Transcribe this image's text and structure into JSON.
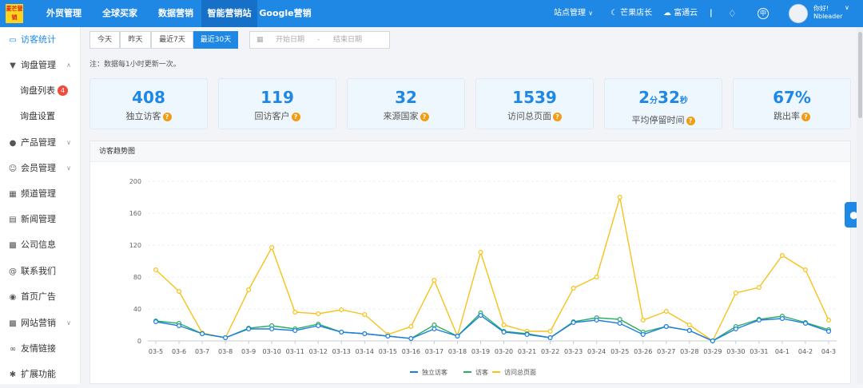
{
  "topbar": {
    "logo": "麦芒营销",
    "nav": [
      "外贸管理",
      "全球买家",
      "数据营销",
      "智能营销站",
      "Google营销"
    ],
    "active_nav": 3,
    "site_manage": "站点管理",
    "mango": "芒果店长",
    "cloud": "富通云",
    "separator": "|",
    "lang": "中",
    "greeting": "你好!",
    "user": "Nbleader"
  },
  "sidebar": {
    "items": [
      {
        "label": "访客统计",
        "icon": "monitor-icon",
        "active": true
      },
      {
        "label": "询盘管理",
        "icon": "cart-icon",
        "expand": "up"
      },
      {
        "label": "询盘列表",
        "sub": true,
        "badge": "4"
      },
      {
        "label": "询盘设置",
        "sub": true
      },
      {
        "label": "产品管理",
        "icon": "product-icon",
        "expand": "down"
      },
      {
        "label": "会员管理",
        "icon": "member-icon",
        "expand": "down"
      },
      {
        "label": "频道管理",
        "icon": "grid-icon"
      },
      {
        "label": "新闻管理",
        "icon": "news-icon"
      },
      {
        "label": "公司信息",
        "icon": "building-icon"
      },
      {
        "label": "联系我们",
        "icon": "at-icon"
      },
      {
        "label": "首页广告",
        "icon": "ad-icon"
      },
      {
        "label": "网站营销",
        "icon": "bar-chart-icon",
        "expand": "down"
      },
      {
        "label": "友情链接",
        "icon": "link-icon"
      },
      {
        "label": "扩展功能",
        "icon": "puzzle-icon"
      }
    ]
  },
  "filter": {
    "ranges": [
      "今天",
      "昨天",
      "最近7天",
      "最近30天"
    ],
    "active": 3,
    "start_placeholder": "开始日期",
    "dash": "-",
    "end_placeholder": "结束日期"
  },
  "note": "注：数据每1小时更新一次。",
  "stats": [
    {
      "value": "408",
      "label": "独立访客"
    },
    {
      "value": "119",
      "label": "回访客户"
    },
    {
      "value": "32",
      "label": "来源国家"
    },
    {
      "value": "1539",
      "label": "访问总页面"
    },
    {
      "value_parts": [
        "2",
        "分",
        "32",
        "秒"
      ],
      "label": "平均停留时间"
    },
    {
      "value": "67%",
      "label": "跳出率"
    }
  ],
  "colors": {
    "primary": "#1f88e5",
    "visitors": "#1e7ee0",
    "visits": "#27ae60",
    "pages": "#f7c21c",
    "badge": "#f04c3e"
  },
  "chart_panel_title": "访客趋势图",
  "chart_data": {
    "type": "line",
    "title": "",
    "xlabel": "",
    "ylabel": "",
    "ylim": [
      0,
      200
    ],
    "yticks": [
      0,
      40,
      80,
      120,
      160,
      200
    ],
    "grid": true,
    "legend": "bottom",
    "categories": [
      "03-5",
      "03-6",
      "03-7",
      "03-8",
      "03-9",
      "03-10",
      "03-11",
      "03-12",
      "03-13",
      "03-14",
      "03-15",
      "03-16",
      "03-17",
      "03-18",
      "03-19",
      "03-20",
      "03-21",
      "03-22",
      "03-23",
      "03-24",
      "03-25",
      "03-26",
      "03-27",
      "03-28",
      "03-29",
      "03-30",
      "03-31",
      "04-1",
      "04-2",
      "04-3"
    ],
    "series": [
      {
        "name": "独立访客",
        "color": "#1e7ee0",
        "values": [
          24,
          19,
          9,
          4,
          15,
          15,
          13,
          19,
          11,
          9,
          6,
          3,
          15,
          6,
          32,
          11,
          8,
          4,
          23,
          26,
          22,
          8,
          18,
          13,
          0,
          15,
          26,
          28,
          22,
          12
        ]
      },
      {
        "name": "访客",
        "color": "#27ae60",
        "values": [
          25,
          22,
          9,
          4,
          16,
          19,
          15,
          21,
          11,
          9,
          6,
          3,
          20,
          6,
          35,
          12,
          9,
          4,
          24,
          29,
          27,
          11,
          18,
          13,
          0,
          18,
          27,
          31,
          23,
          14
        ]
      },
      {
        "name": "访问总页面",
        "color": "#f7c21c",
        "values": [
          89,
          62,
          10,
          4,
          64,
          117,
          36,
          34,
          39,
          33,
          8,
          18,
          76,
          6,
          111,
          20,
          12,
          12,
          66,
          80,
          180,
          26,
          37,
          20,
          0,
          60,
          67,
          107,
          89,
          26
        ]
      }
    ]
  }
}
